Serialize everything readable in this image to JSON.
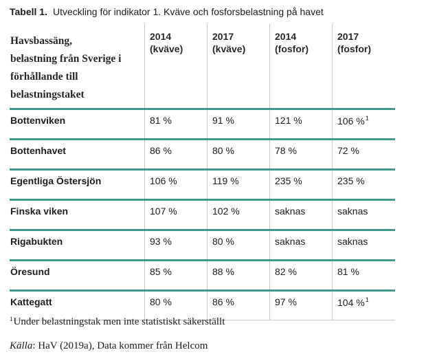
{
  "caption": {
    "label": "Tabell 1.",
    "text": "Utveckling för indikator 1. Kväve och fosforsbelastning på havet"
  },
  "table": {
    "header_lines": [
      "Havsbassäng,",
      "belastning från Sverige i",
      "förhållande till",
      "belastningstaket"
    ],
    "columns": [
      {
        "year": "2014",
        "substance": "(kväve)"
      },
      {
        "year": "2017",
        "substance": "(kväve)"
      },
      {
        "year": "2014",
        "substance": "(fosfor)"
      },
      {
        "year": "2017",
        "substance": "(fosfor)"
      }
    ],
    "rows": [
      {
        "name": "Bottenviken",
        "values": [
          "81 %",
          "91 %",
          "121 %",
          "106 %"
        ],
        "note": [
          "",
          "",
          "",
          "1"
        ]
      },
      {
        "name": "Bottenhavet",
        "values": [
          "86 %",
          "80 %",
          "78 %",
          "72 %"
        ],
        "note": [
          "",
          "",
          "",
          ""
        ]
      },
      {
        "name": "Egentliga Östersjön",
        "values": [
          "106 %",
          "119 %",
          "235 %",
          "235 %"
        ],
        "note": [
          "",
          "",
          "",
          ""
        ]
      },
      {
        "name": "Finska viken",
        "values": [
          "107 %",
          "102 %",
          "saknas",
          "saknas"
        ],
        "note": [
          "",
          "",
          "",
          ""
        ]
      },
      {
        "name": "Rigabukten",
        "values": [
          "93 %",
          "80 %",
          "saknas",
          "saknas"
        ],
        "note": [
          "",
          "",
          "",
          ""
        ]
      },
      {
        "name": "Öresund",
        "values": [
          "85 %",
          "88 %",
          "82 %",
          "81 %"
        ],
        "note": [
          "",
          "",
          "",
          ""
        ]
      },
      {
        "name": "Kattegatt",
        "values": [
          "80 %",
          "86 %",
          "97 %",
          "104 %"
        ],
        "note": [
          "",
          "",
          "",
          "1"
        ]
      }
    ]
  },
  "footnote": {
    "marker": "1",
    "text": "Under belastningstak men inte statistiskt säkerställt"
  },
  "source": {
    "label": "Källa",
    "text": ": HaV (2019a), Data kommer från Helcom"
  },
  "colors": {
    "rule": "#3e9a8e",
    "divider": "#c8c8c8"
  }
}
